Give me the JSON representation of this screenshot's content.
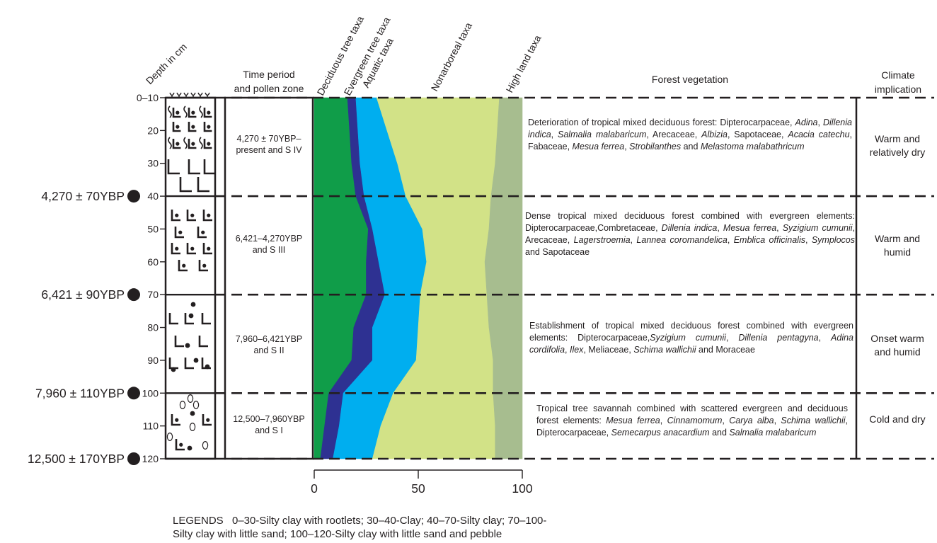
{
  "header": {
    "depth": "Depth in cm",
    "time_period": [
      "Time period",
      "and pollen zone"
    ],
    "forest_vegetation": "Forest vegetation",
    "climate": [
      "Climate",
      "implication"
    ]
  },
  "depth_ticks": [
    "0–10",
    "20",
    "30",
    "40",
    "50",
    "60",
    "70",
    "80",
    "90",
    "100",
    "110",
    "120"
  ],
  "dates": [
    {
      "label": "4,270 ± 70YBP",
      "depth": 40
    },
    {
      "label": "6,421 ± 90YBP",
      "depth": 70
    },
    {
      "label": "7,960 ± 110YBP",
      "depth": 100
    },
    {
      "label": "12,500 ± 170YBP",
      "depth": 120
    }
  ],
  "zones": [
    {
      "period": [
        "4,270  ± 70YBP–",
        "present and S IV"
      ],
      "vegetation": [
        [
          "Deterioration of tropical mixed deciduous forest: Dipterocarpaceae, ",
          ""
        ],
        [
          "Adina",
          "i"
        ],
        [
          ", ",
          ""
        ],
        [
          "Dillenia indica",
          "i"
        ],
        [
          ", ",
          ""
        ],
        [
          "Salmalia malabaricum",
          "i"
        ],
        [
          ", Arecaceae, ",
          ""
        ],
        [
          "Albizia",
          "i"
        ],
        [
          ", Sapotaceae, ",
          ""
        ],
        [
          "Acacia catechu",
          "i"
        ],
        [
          ", Fabaceae, ",
          ""
        ],
        [
          "Mesua ferrea",
          "i"
        ],
        [
          ", ",
          ""
        ],
        [
          "Strobilanthes",
          "i"
        ],
        [
          " and ",
          ""
        ],
        [
          "Melastoma malabathricum",
          "i"
        ]
      ],
      "climate": [
        "Warm and",
        "relatively dry"
      ]
    },
    {
      "period": [
        "6,421–4,270YBP",
        "and S III"
      ],
      "vegetation": [
        [
          "Dense tropical mixed deciduous forest combined with evergreen elements: Dipterocarpaceae,Combretaceae, ",
          ""
        ],
        [
          "Dillenia indica",
          "i"
        ],
        [
          ", ",
          ""
        ],
        [
          "Mesua ferrea",
          "i"
        ],
        [
          ", ",
          ""
        ],
        [
          "Syzigium cumunii",
          "i"
        ],
        [
          ", Arecaceae, ",
          ""
        ],
        [
          "Lagerstroemia",
          "i"
        ],
        [
          ", ",
          ""
        ],
        [
          "Lannea coromandelica",
          "i"
        ],
        [
          ", ",
          ""
        ],
        [
          "Emblica officinalis",
          "i"
        ],
        [
          ", ",
          ""
        ],
        [
          "Symplocos",
          "i"
        ],
        [
          " and Sapotaceae",
          ""
        ]
      ],
      "climate": [
        "Warm and",
        "humid"
      ]
    },
    {
      "period": [
        "7,960–6,421YBP",
        "and S II"
      ],
      "vegetation": [
        [
          "Establishment of tropical mixed deciduous forest combined with evergreen elements: Dipterocarpaceae,",
          ""
        ],
        [
          "Syzigium cumunii",
          "i"
        ],
        [
          ", ",
          ""
        ],
        [
          "Dillenia pentagyna",
          "i"
        ],
        [
          ", ",
          ""
        ],
        [
          "Adina cordifolia",
          "i"
        ],
        [
          ", ",
          ""
        ],
        [
          "Ilex",
          "i"
        ],
        [
          ", Meliaceae, ",
          ""
        ],
        [
          "Schima wallichii",
          "i"
        ],
        [
          " and Moraceae",
          ""
        ]
      ],
      "climate": [
        "Onset warm",
        "and humid"
      ]
    },
    {
      "period": [
        "12,500–7,960YBP",
        "and S I"
      ],
      "vegetation": [
        [
          "Tropical tree savannah combined with scattered evergreen and deciduous forest elements:  ",
          ""
        ],
        [
          "Mesua ferrea",
          "i"
        ],
        [
          ", ",
          ""
        ],
        [
          "Cinnamomum",
          "i"
        ],
        [
          ", ",
          ""
        ],
        [
          "Carya alba",
          "i"
        ],
        [
          ", ",
          ""
        ],
        [
          "Schima wallichii",
          "i"
        ],
        [
          ", Dipterocarpaceae, ",
          ""
        ],
        [
          "Semecarpus anacardium",
          "i"
        ],
        [
          " and ",
          ""
        ],
        [
          "Salmalia malabaricum",
          "i"
        ]
      ],
      "climate": [
        "Cold and dry"
      ]
    }
  ],
  "legend": {
    "title": "LEGENDS",
    "text_line1": "0–30-Silty clay with rootlets; 30–40-Clay; 40–70-Silty clay; 70–100-",
    "text_line2": "Silty clay with little sand; 100–120-Silty clay with little sand and pebble"
  },
  "colors": {
    "deciduous": "#109d49",
    "evergreen": "#2e3192",
    "aquatic": "#00aeef",
    "nonarboreal": "#d2e287",
    "highland": "#a7bd8f"
  },
  "chart_data": {
    "type": "area",
    "stacked": true,
    "xlabel": "",
    "ylabel": "Depth in cm",
    "xlim": [
      0,
      100
    ],
    "x_ticks": [
      0,
      50,
      100
    ],
    "ylim": [
      10,
      120
    ],
    "depth": [
      10,
      20,
      30,
      40,
      50,
      60,
      70,
      80,
      90,
      100,
      110,
      120
    ],
    "series": [
      {
        "name": "Deciduous tree taxa",
        "color": "#109d49",
        "cumulative": [
          16,
          17,
          18,
          20,
          26,
          25,
          25,
          19,
          18,
          7,
          5,
          3
        ]
      },
      {
        "name": "Evergreen tree taxa",
        "color": "#2e3192",
        "cumulative": [
          20,
          21,
          22,
          24,
          28,
          31,
          34,
          28,
          28,
          14,
          12,
          9
        ]
      },
      {
        "name": "Aquatic taxa",
        "color": "#00aeef",
        "cumulative": [
          30,
          35,
          40,
          44,
          52,
          54,
          51,
          50,
          49,
          38,
          32,
          28
        ]
      },
      {
        "name": "Nonarboreal taxa",
        "color": "#d2e287",
        "cumulative": [
          89,
          88,
          87,
          85,
          84,
          82,
          83,
          84,
          86,
          86,
          87,
          87
        ]
      },
      {
        "name": "High land taxa",
        "color": "#a7bd8f",
        "cumulative": [
          100,
          100,
          100,
          100,
          100,
          100,
          100,
          100,
          100,
          100,
          100,
          100
        ]
      }
    ]
  }
}
